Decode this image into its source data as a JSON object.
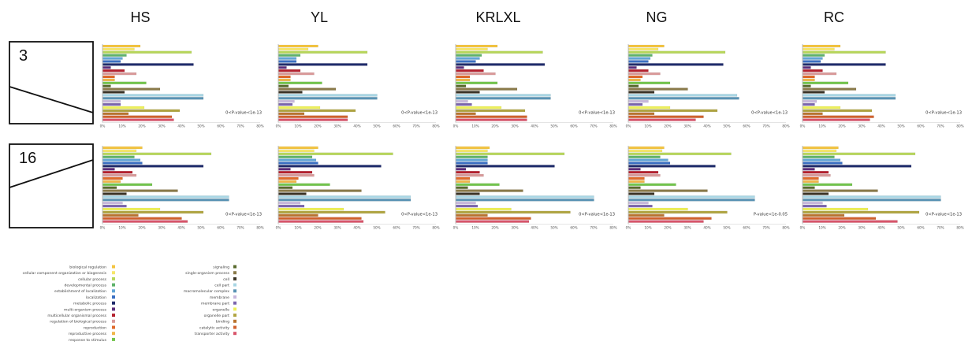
{
  "columns": [
    "HS",
    "YL",
    "KRLXL",
    "NG",
    "RC"
  ],
  "row_labels": [
    "3",
    "16"
  ],
  "x_ticks": [
    "0%",
    "10%",
    "20%",
    "30%",
    "40%",
    "50%",
    "60%",
    "70%",
    "80%"
  ],
  "categories": [
    {
      "label": "biological regulation",
      "color": "#f4c542"
    },
    {
      "label": "cellular component organization or biogenesis",
      "color": "#f7e66a"
    },
    {
      "label": "cellular process",
      "color": "#b7d65a"
    },
    {
      "label": "developmental process",
      "color": "#5fb26a"
    },
    {
      "label": "establishment of localization",
      "color": "#62a5d6"
    },
    {
      "label": "localization",
      "color": "#3a6fc2"
    },
    {
      "label": "metabolic process",
      "color": "#1f2b6b"
    },
    {
      "label": "multi-organism process",
      "color": "#5b2d7a"
    },
    {
      "label": "multicellular organismal process",
      "color": "#b3202e"
    },
    {
      "label": "regulation of biological process",
      "color": "#d99a9a"
    },
    {
      "label": "reproduction",
      "color": "#e06a2a"
    },
    {
      "label": "reproductive process",
      "color": "#f0b64a"
    },
    {
      "label": "response to stimulus",
      "color": "#72c44c"
    },
    {
      "label": "signaling",
      "color": "#5a6b2e"
    },
    {
      "label": "single-organism process",
      "color": "#8a7a4a"
    },
    {
      "label": "cell",
      "color": "#3b3426"
    },
    {
      "label": "cell part",
      "color": "#a8d6e4"
    },
    {
      "label": "macromolecular complex",
      "color": "#5a93b4"
    },
    {
      "label": "membrane",
      "color": "#c7b7dc"
    },
    {
      "label": "membrane part",
      "color": "#7b66ad"
    },
    {
      "label": "organelle",
      "color": "#edf05a"
    },
    {
      "label": "organelle part",
      "color": "#b0a440"
    },
    {
      "label": "binding",
      "color": "#b8732e"
    },
    {
      "label": "catalytic activity",
      "color": "#d0612e"
    },
    {
      "label": "transporter activity",
      "color": "#d8546a"
    }
  ],
  "chart_data": [
    {
      "type": "bar",
      "row": "3",
      "column": "HS",
      "annotation": "0<P-value<1e-13",
      "xlim": [
        0,
        80
      ],
      "values": [
        19,
        16,
        45,
        12,
        10,
        9,
        46,
        4,
        11,
        17,
        6,
        6,
        22,
        4,
        29,
        11,
        51,
        51,
        9,
        9,
        21,
        39,
        13,
        35,
        36
      ]
    },
    {
      "type": "bar",
      "row": "3",
      "column": "YL",
      "annotation": "0<P-value<1e-13",
      "xlim": [
        0,
        80
      ],
      "values": [
        20,
        15,
        45,
        11,
        9,
        9,
        45,
        4,
        11,
        18,
        6,
        6,
        22,
        5,
        29,
        12,
        50,
        50,
        8,
        7,
        21,
        39,
        13,
        35,
        35
      ]
    },
    {
      "type": "bar",
      "row": "3",
      "column": "KRLXL",
      "annotation": "0<P-value<1e-13",
      "xlim": [
        0,
        80
      ],
      "values": [
        21,
        16,
        44,
        13,
        12,
        10,
        45,
        4,
        14,
        20,
        7,
        7,
        21,
        5,
        31,
        12,
        48,
        48,
        6,
        8,
        23,
        35,
        10,
        36,
        36
      ]
    },
    {
      "type": "bar",
      "row": "3",
      "column": "NG",
      "annotation": "0<P-value<1e-13",
      "xlim": [
        0,
        80
      ],
      "values": [
        18,
        15,
        49,
        12,
        11,
        10,
        48,
        4,
        10,
        16,
        7,
        6,
        21,
        5,
        30,
        13,
        55,
        56,
        10,
        7,
        21,
        45,
        13,
        38,
        34
      ]
    },
    {
      "type": "bar",
      "row": "3",
      "column": "RC",
      "annotation": "0<P-value<1e-13",
      "xlim": [
        0,
        80
      ],
      "values": [
        19,
        16,
        42,
        11,
        10,
        9,
        42,
        4,
        10,
        17,
        6,
        6,
        23,
        4,
        27,
        11,
        47,
        47,
        7,
        6,
        19,
        35,
        10,
        36,
        34
      ]
    },
    {
      "type": "bar",
      "row": "16",
      "column": "HS",
      "annotation": "0<P-value<1e-13",
      "xlim": [
        0,
        80
      ],
      "values": [
        20,
        17,
        55,
        16,
        19,
        20,
        51,
        6,
        15,
        17,
        10,
        9,
        25,
        7,
        38,
        12,
        64,
        64,
        10,
        12,
        29,
        51,
        18,
        40,
        43
      ]
    },
    {
      "type": "bar",
      "row": "16",
      "column": "YL",
      "annotation": "0<P-value<1e-13",
      "xlim": [
        0,
        80
      ],
      "values": [
        20,
        18,
        58,
        17,
        19,
        20,
        52,
        6,
        17,
        18,
        10,
        9,
        26,
        7,
        42,
        14,
        67,
        67,
        11,
        13,
        33,
        54,
        20,
        42,
        43
      ]
    },
    {
      "type": "bar",
      "row": "16",
      "column": "KRLXL",
      "annotation": "0<P-value<1e-13",
      "xlim": [
        0,
        80
      ],
      "values": [
        17,
        16,
        55,
        16,
        16,
        16,
        50,
        5,
        12,
        14,
        7,
        7,
        22,
        6,
        34,
        12,
        70,
        70,
        10,
        11,
        28,
        58,
        16,
        38,
        37
      ]
    },
    {
      "type": "bar",
      "row": "16",
      "column": "NG",
      "annotation": "P-value<1e-0.05",
      "xlim": [
        0,
        80
      ],
      "values": [
        18,
        17,
        52,
        16,
        20,
        21,
        44,
        6,
        15,
        16,
        8,
        8,
        24,
        6,
        40,
        13,
        64,
        64,
        10,
        12,
        30,
        50,
        18,
        42,
        38
      ]
    },
    {
      "type": "bar",
      "row": "16",
      "column": "RC",
      "annotation": "0<P-value<1e-13",
      "xlim": [
        0,
        80
      ],
      "values": [
        18,
        17,
        57,
        16,
        19,
        20,
        55,
        6,
        13,
        14,
        8,
        8,
        25,
        6,
        38,
        13,
        70,
        70,
        10,
        12,
        33,
        59,
        21,
        37,
        48
      ]
    }
  ]
}
